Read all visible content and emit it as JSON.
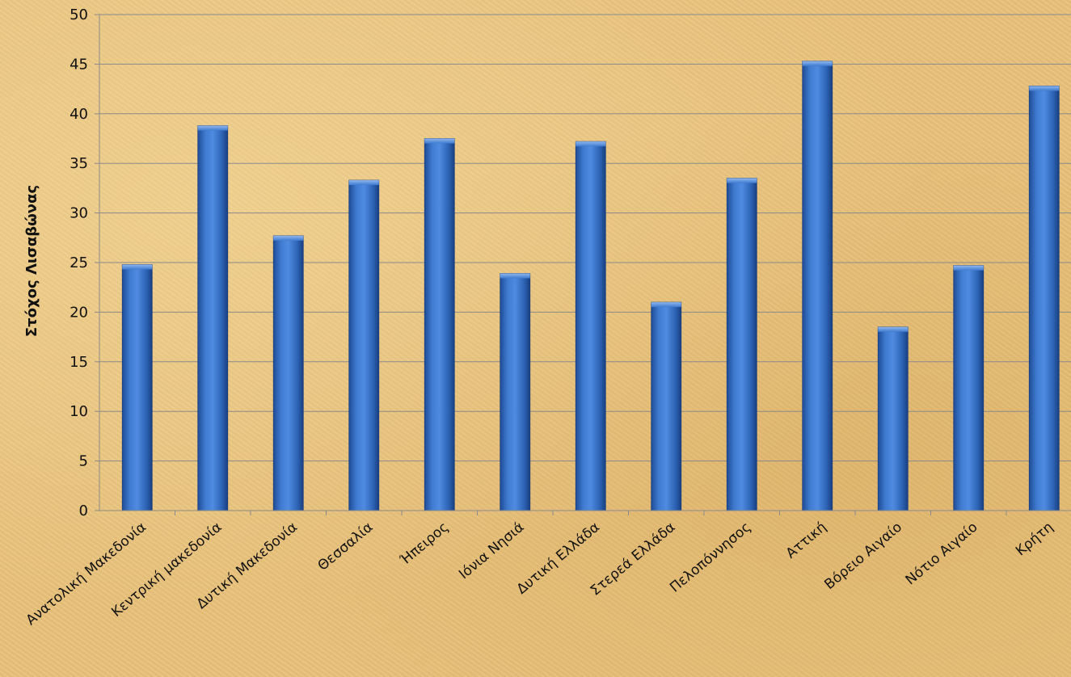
{
  "chart_data": {
    "type": "bar",
    "title": "",
    "xlabel": "",
    "ylabel": "Στόχος Λισαβώνας",
    "ylim": [
      0,
      50
    ],
    "ytick_step": 5,
    "grid": true,
    "legend": "none",
    "bar_color": "#3a72c4",
    "categories": [
      "Ανατολική Μακεδονία",
      "Κεντρική μακεδονία",
      "Δυτική Μακεδονία",
      "Θεσσαλία",
      "Ήπειρος",
      "Ιόνια Νησιά",
      "Δυτική Ελλάδα",
      "Στερεά Ελλάδα",
      "Πελοπόννησος",
      "Αττική",
      "Βόρειο Αιγαίο",
      "Νότιο Αιγαίο",
      "Κρήτη"
    ],
    "values": [
      24.8,
      38.8,
      27.7,
      33.3,
      37.5,
      23.9,
      37.2,
      21.0,
      33.5,
      45.3,
      18.5,
      24.7,
      42.8
    ]
  }
}
